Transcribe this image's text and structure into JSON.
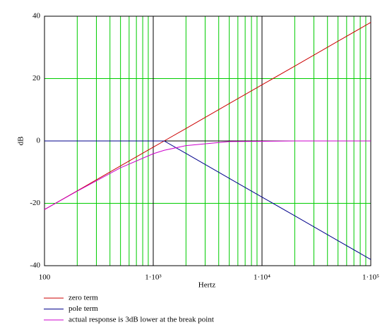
{
  "chart_data": {
    "type": "line",
    "x_label": "Hertz",
    "y_label": "dB",
    "x": [
      100,
      200,
      500,
      1000,
      1260,
      2000,
      5000,
      10000,
      20000,
      50000,
      100000
    ],
    "series": [
      {
        "name": "zero term",
        "color": "#cc0000",
        "values": [
          -22,
          -16,
          -8,
          -2,
          0,
          4,
          12,
          18,
          24,
          32,
          38
        ]
      },
      {
        "name": "pole term",
        "color": "#00008b",
        "values": [
          0,
          0,
          0,
          0,
          0,
          -4,
          -12,
          -18,
          -24,
          -32,
          -38
        ]
      },
      {
        "name": "actual response is 3dB lower at the break point",
        "color": "#cc00cc",
        "values": [
          -22,
          -16.1,
          -8.6,
          -4.1,
          -3,
          -1.5,
          -0.2,
          -0.1,
          0,
          0,
          0
        ]
      }
    ],
    "xlim": [
      100,
      100000
    ],
    "xscale": "log",
    "xticks": [
      100,
      {
        "value": 1000,
        "label": "1·10³"
      },
      {
        "value": 10000,
        "label": "1·10⁴"
      },
      {
        "value": 100000,
        "label": "1·10⁵"
      }
    ],
    "ylim": [
      -40,
      40
    ],
    "yticks": [
      -40,
      -20,
      0,
      20,
      40
    ],
    "grid": true,
    "grid_color": "#00cc00",
    "legend": "bottom"
  }
}
